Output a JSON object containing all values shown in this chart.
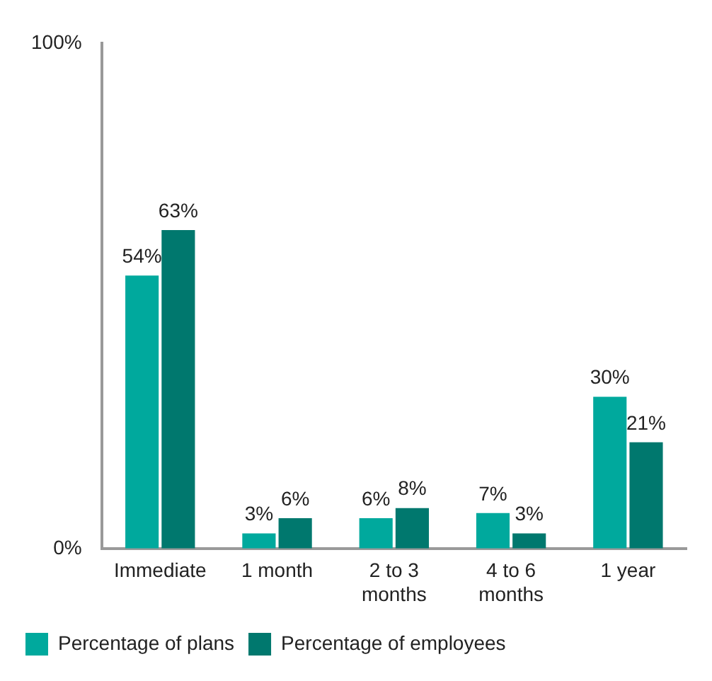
{
  "chart_data": {
    "type": "bar",
    "categories": [
      "Immediate",
      "1 month",
      "2 to 3 months",
      "4 to 6 months",
      "1 year"
    ],
    "series": [
      {
        "name": "Percentage of plans",
        "color": "#00a99d",
        "values": [
          54,
          3,
          6,
          7,
          30
        ],
        "value_labels": [
          "54%",
          "3%",
          "6%",
          "7%",
          "30%"
        ]
      },
      {
        "name": "Percentage of employees",
        "color": "#00786e",
        "values": [
          63,
          6,
          8,
          3,
          21
        ],
        "value_labels": [
          "63%",
          "6%",
          "8%",
          "3%",
          "21%"
        ]
      }
    ],
    "ylim": [
      0,
      100
    ],
    "yticks": [
      {
        "value": 0,
        "label": "0%"
      },
      {
        "value": 100,
        "label": "100%"
      }
    ],
    "grid": false,
    "legend": "bottom"
  }
}
